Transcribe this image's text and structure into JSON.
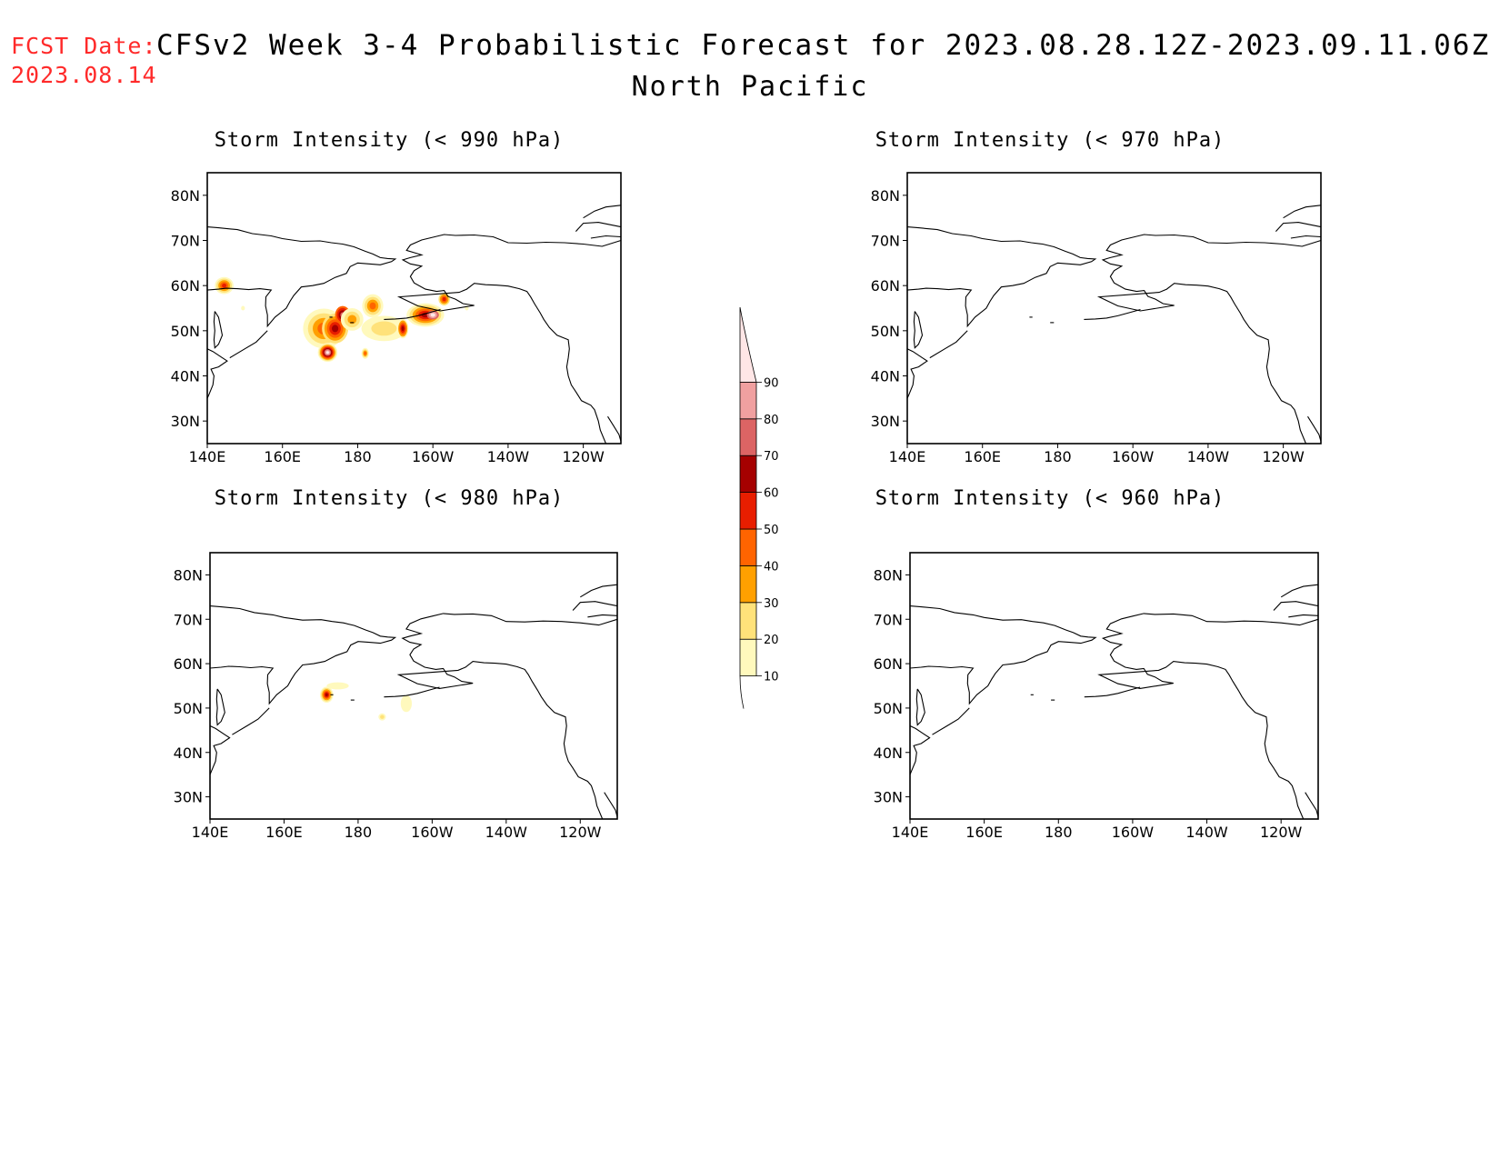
{
  "header": {
    "fcst_label": "FCST Date:",
    "fcst_date": "2023.08.14",
    "title": "CFSv2 Week 3-4 Probabilistic Forecast for 2023.08.28.12Z-2023.09.11.06Z",
    "region": "North Pacific"
  },
  "axes": {
    "lon_labels": [
      "140E",
      "160E",
      "180",
      "160W",
      "140W",
      "120W"
    ],
    "lat_labels": [
      "80N",
      "70N",
      "60N",
      "50N",
      "40N",
      "30N"
    ],
    "lon_range": [
      140,
      250
    ],
    "lat_range": [
      25,
      85
    ]
  },
  "panels": [
    {
      "title": "Storm Intensity (< 990 hPa)",
      "id": "p990",
      "has_data": true
    },
    {
      "title": "Storm Intensity (< 970 hPa)",
      "id": "p970",
      "has_data": false
    },
    {
      "title": "Storm Intensity (< 980 hPa)",
      "id": "p980",
      "has_data": true
    },
    {
      "title": "Storm Intensity (< 960 hPa)",
      "id": "p960",
      "has_data": false
    }
  ],
  "colorbar": {
    "levels": [
      "10",
      "20",
      "30",
      "40",
      "50",
      "60",
      "70",
      "80",
      "90"
    ],
    "colors": [
      "#fff9bd",
      "#ffe27a",
      "#ffa000",
      "#ff6400",
      "#e81e00",
      "#a50000",
      "#dc6464",
      "#f0a0a0",
      "#ffe6e6"
    ]
  }
}
